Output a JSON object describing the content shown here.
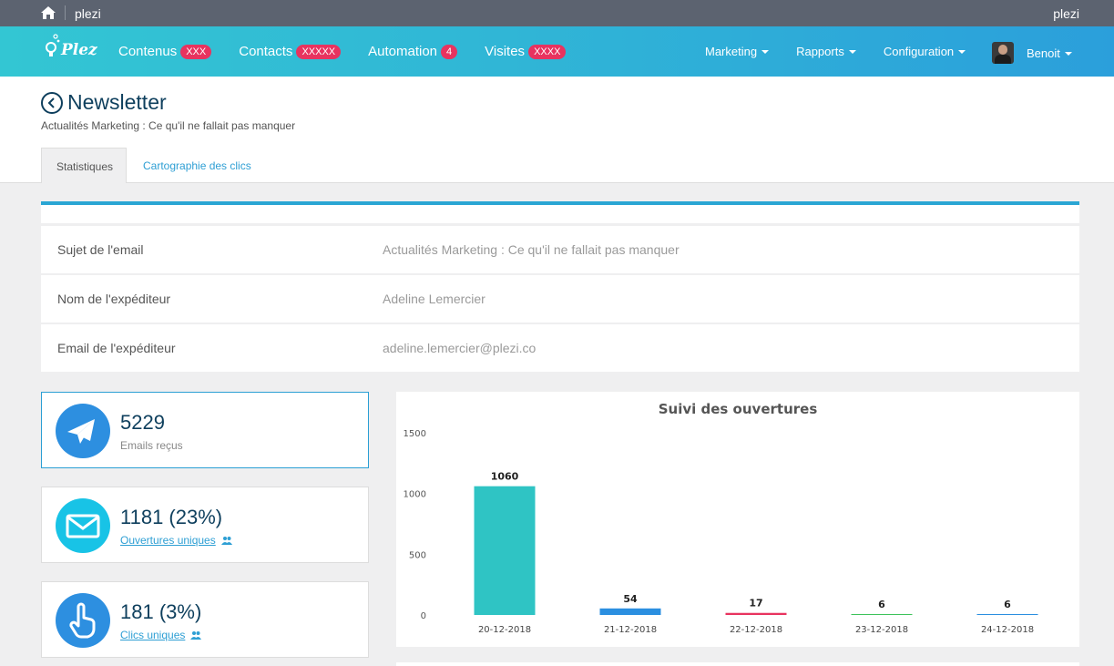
{
  "topbar": {
    "title": "plezi",
    "user": "plezi"
  },
  "logo": {
    "text": "Plezi"
  },
  "nav": {
    "items": [
      {
        "label": "Contenus",
        "badge": "XXX"
      },
      {
        "label": "Contacts",
        "badge": "XXXXX"
      },
      {
        "label": "Automation",
        "badge": "4"
      },
      {
        "label": "Visites",
        "badge": "XXXX"
      }
    ],
    "menus": [
      {
        "label": "Marketing"
      },
      {
        "label": "Rapports"
      },
      {
        "label": "Configuration"
      }
    ],
    "user": "Benoit"
  },
  "page": {
    "title": "Newsletter",
    "subtitle": "Actualités Marketing : Ce qu'il ne fallait pas manquer",
    "tabs": [
      {
        "label": "Statistiques",
        "active": true
      },
      {
        "label": "Cartographie des clics",
        "active": false
      }
    ]
  },
  "info": [
    {
      "label": "Sujet de l'email",
      "value": "Actualités Marketing : Ce qu'il ne fallait pas manquer"
    },
    {
      "label": "Nom de l'expéditeur",
      "value": "Adeline Lemercier"
    },
    {
      "label": "Email de l'expéditeur",
      "value": "adeline.lemercier@plezi.co"
    }
  ],
  "stats": [
    {
      "value": "5229",
      "label": "Emails reçus",
      "icon": "paper-plane-icon",
      "color": "#2d8fe0"
    },
    {
      "value": "1181 (23%)",
      "label": "Ouvertures uniques",
      "icon": "envelope-icon",
      "color": "#18c3e6"
    },
    {
      "value": "181 (3%)",
      "label": "Clics uniques",
      "icon": "hand-pointer-icon",
      "color": "#2d8fe0"
    }
  ],
  "colors": {
    "accent": "#2aa6d4",
    "title": "#0e3f5d",
    "badge": "#e8335f",
    "link": "#2e9fd4"
  },
  "chart_data": {
    "type": "bar",
    "title": "Suivi des ouvertures",
    "categories": [
      "20-12-2018",
      "21-12-2018",
      "22-12-2018",
      "23-12-2018",
      "24-12-2018"
    ],
    "values": [
      1060,
      54,
      17,
      6,
      6
    ],
    "colors": [
      "#2fc4c4",
      "#2b8fe0",
      "#e8335f",
      "#3ec35b",
      "#2b8fe0"
    ],
    "yticks": [
      0,
      500,
      1000,
      1500
    ],
    "ylim": [
      0,
      1500
    ],
    "xlabel": "",
    "ylabel": "",
    "grid": false,
    "legend": false
  }
}
